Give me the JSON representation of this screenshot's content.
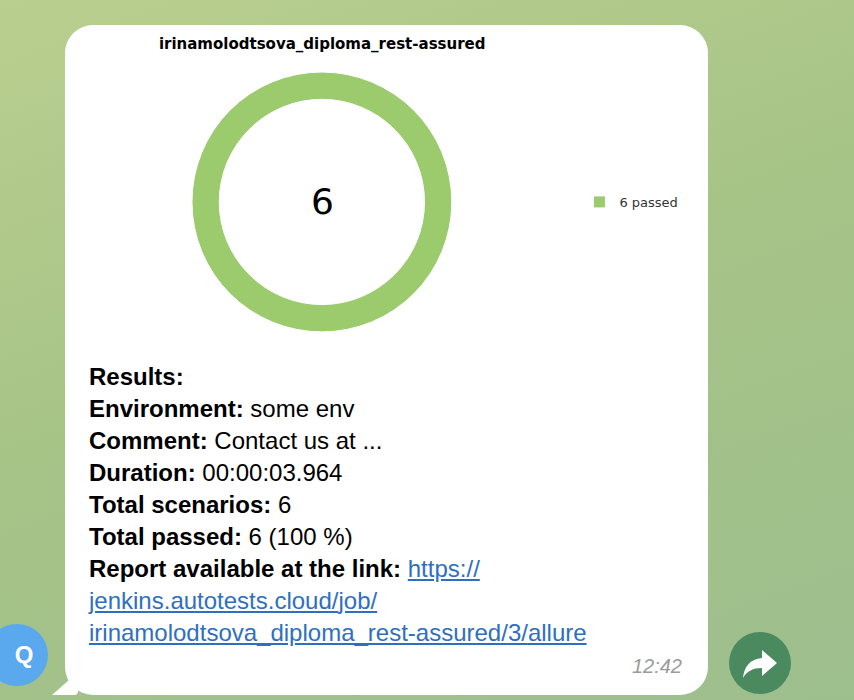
{
  "chart_data": {
    "type": "donut",
    "title": "irinamolodtsova_diploma_rest-assured",
    "categories": [
      "6 passed"
    ],
    "values": [
      6
    ],
    "colors": [
      "#9bcb6c"
    ],
    "legend": "right",
    "data_labels": false,
    "annotations": [
      "6"
    ]
  },
  "message": {
    "lines": [
      {
        "label": "Results:"
      },
      {
        "label": "Environment:",
        "value": "some env"
      },
      {
        "label": "Comment:",
        "value": "Contact us at ..."
      },
      {
        "label": "Duration:",
        "value": "00:00:03.964"
      },
      {
        "label": "Total scenarios:",
        "value": "6"
      },
      {
        "label": "Total passed:",
        "value": "6 (100 %)"
      },
      {
        "label": "Report available at the link:",
        "link": "https://jenkins.autotests.cloud/job/irinamolodtsova_diploma_rest-assured/3/allure"
      }
    ],
    "time": "12:42",
    "avatar": "Q"
  }
}
